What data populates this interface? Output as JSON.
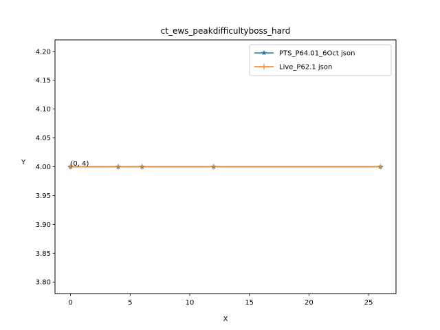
{
  "chart_data": {
    "type": "line",
    "title": "ct_ews_peakdifficultyboss_hard",
    "xlabel": "X",
    "ylabel": "Y",
    "xlim": [
      -1.3,
      27.3
    ],
    "ylim": [
      3.78,
      4.22
    ],
    "xticks": [
      0,
      5,
      10,
      15,
      20,
      25
    ],
    "yticks": [
      3.8,
      3.85,
      3.9,
      3.95,
      4.0,
      4.05,
      4.1,
      4.15,
      4.2
    ],
    "ytick_labels": [
      "3.80",
      "3.85",
      "3.90",
      "3.95",
      "4.00",
      "4.05",
      "4.10",
      "4.15",
      "4.20"
    ],
    "legend_position": "top-right",
    "grid": false,
    "series": [
      {
        "name": "PTS_P64.01_6Oct json",
        "color": "#1f77b4",
        "marker": "star",
        "x": [
          0,
          4,
          6,
          12,
          26
        ],
        "y": [
          4,
          4,
          4,
          4,
          4
        ]
      },
      {
        "name": "Live_P62.1 json",
        "color": "#ff7f0e",
        "marker": "plus",
        "x": [
          0,
          4,
          6,
          12,
          26
        ],
        "y": [
          4,
          4,
          4,
          4,
          4
        ]
      }
    ],
    "annotations": [
      {
        "text": "(0, 4)",
        "x": 0,
        "y": 4
      }
    ]
  }
}
